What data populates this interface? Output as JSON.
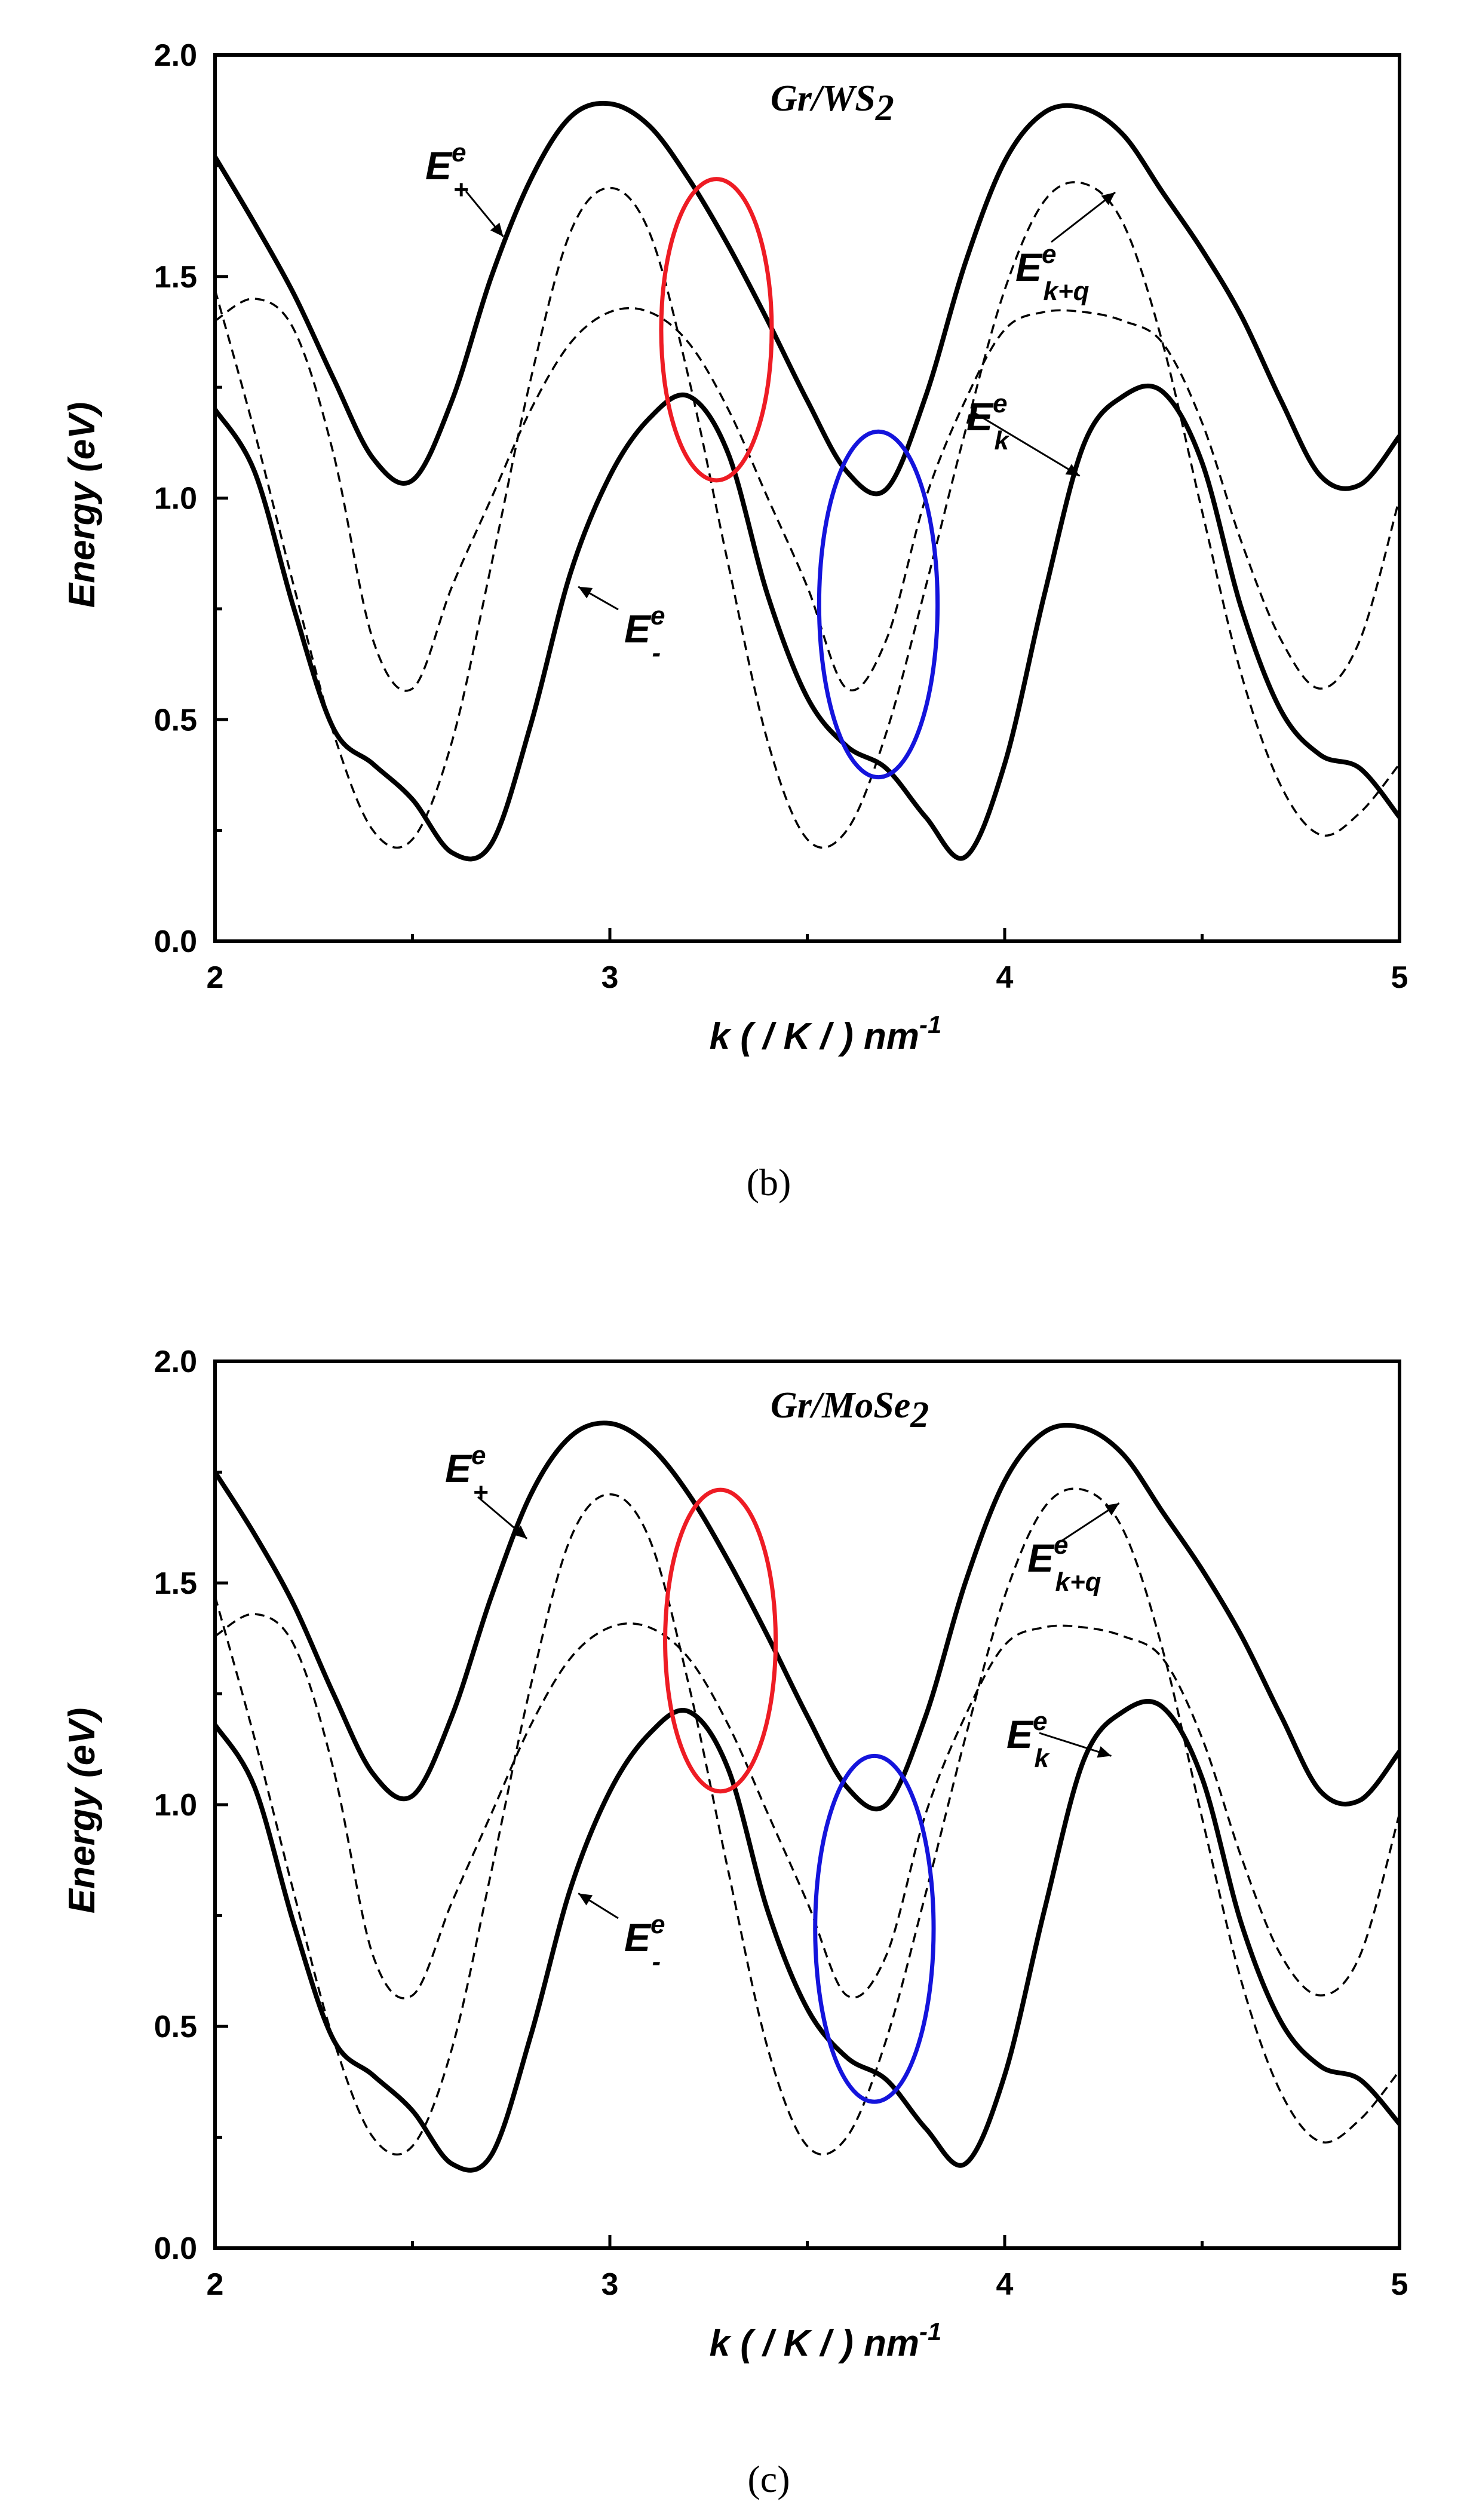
{
  "chart_data": [
    {
      "type": "line",
      "panel_label": "(b)",
      "title": "Gr/WS",
      "title_sub": "2",
      "xlabel": "k ( / K / ) nm",
      "xlabel_sup": "-1",
      "ylabel": "Energy (eV)",
      "xlim": [
        2,
        5
      ],
      "ylim": [
        0,
        2
      ],
      "xticks": [
        2,
        3,
        4,
        5
      ],
      "xtick_labels": [
        "2",
        "3",
        "4",
        "5"
      ],
      "yticks": [
        0,
        0.5,
        1,
        1.5,
        2
      ],
      "ytick_labels": [
        "0.0",
        "0.5",
        "1.0",
        "1.5",
        "2.0"
      ],
      "x": [
        2.0,
        2.1,
        2.2,
        2.3,
        2.4,
        2.5,
        2.6,
        2.7,
        2.8,
        2.9,
        3.0,
        3.1,
        3.2,
        3.3,
        3.4,
        3.5,
        3.6,
        3.7,
        3.8,
        3.9,
        4.0,
        4.1,
        4.2,
        4.3,
        4.4,
        4.5,
        4.6,
        4.7,
        4.8,
        4.9,
        5.0
      ],
      "series": [
        {
          "name": "E+e",
          "style": "solid",
          "values": [
            1.77,
            1.62,
            1.46,
            1.27,
            1.09,
            1.04,
            1.22,
            1.5,
            1.72,
            1.86,
            1.89,
            1.84,
            1.72,
            1.57,
            1.4,
            1.22,
            1.06,
            1.02,
            1.23,
            1.53,
            1.76,
            1.87,
            1.88,
            1.82,
            1.69,
            1.56,
            1.41,
            1.22,
            1.05,
            1.03,
            1.14
          ]
        },
        {
          "name": "E-e",
          "style": "solid",
          "values": [
            1.2,
            1.06,
            0.75,
            0.48,
            0.4,
            0.32,
            0.2,
            0.22,
            0.49,
            0.83,
            1.05,
            1.18,
            1.23,
            1.1,
            0.78,
            0.55,
            0.44,
            0.39,
            0.28,
            0.19,
            0.4,
            0.78,
            1.12,
            1.23,
            1.24,
            1.08,
            0.75,
            0.52,
            0.42,
            0.39,
            0.28
          ]
        },
        {
          "name": "Ek+qe",
          "style": "dashed",
          "values": [
            1.47,
            1.15,
            0.8,
            0.47,
            0.25,
            0.23,
            0.45,
            0.85,
            1.27,
            1.6,
            1.7,
            1.6,
            1.27,
            0.85,
            0.45,
            0.23,
            0.25,
            0.47,
            0.8,
            1.15,
            1.47,
            1.67,
            1.71,
            1.62,
            1.35,
            0.97,
            0.6,
            0.35,
            0.24,
            0.29,
            0.4
          ]
        },
        {
          "name": "Eke",
          "style": "dashed",
          "values": [
            1.4,
            1.45,
            1.38,
            1.1,
            0.68,
            0.57,
            0.8,
            1.0,
            1.2,
            1.35,
            1.42,
            1.42,
            1.35,
            1.2,
            1.0,
            0.8,
            0.57,
            0.68,
            1.0,
            1.22,
            1.38,
            1.42,
            1.42,
            1.4,
            1.35,
            1.17,
            0.9,
            0.68,
            0.57,
            0.68,
            1.0
          ]
        }
      ],
      "annotations": [
        {
          "label": "E",
          "sup": "e",
          "sub": "+",
          "arrow_to": [
            2.73,
            1.59
          ]
        },
        {
          "label": "E",
          "sup": "e",
          "sub": "-",
          "arrow_to": [
            2.92,
            0.8
          ]
        },
        {
          "label": "E",
          "sup": "e",
          "sub": "k+q",
          "arrow_to": [
            4.28,
            1.69
          ]
        },
        {
          "label": "E",
          "sup": "e",
          "sub": "k",
          "arrow_to": [
            4.19,
            1.05
          ]
        }
      ],
      "highlights": [
        {
          "color": "#ee1c24",
          "cx": 3.27,
          "cy": 1.38,
          "rx": 0.14,
          "ry": 0.34
        },
        {
          "color": "#1414dc",
          "cx": 3.68,
          "cy": 0.76,
          "rx": 0.15,
          "ry": 0.39
        }
      ]
    },
    {
      "type": "line",
      "panel_label": "(c)",
      "title": "Gr/MoSe",
      "title_sub": "2",
      "xlabel": "k ( / K / ) nm",
      "xlabel_sup": "-1",
      "ylabel": "Energy (eV)",
      "xlim": [
        2,
        5
      ],
      "ylim": [
        0,
        2
      ],
      "xticks": [
        2,
        3,
        4,
        5
      ],
      "xtick_labels": [
        "2",
        "3",
        "4",
        "5"
      ],
      "yticks": [
        0,
        0.5,
        1,
        1.5,
        2
      ],
      "ytick_labels": [
        "0.0",
        "0.5",
        "1.0",
        "1.5",
        "2.0"
      ],
      "x": [
        2.0,
        2.1,
        2.2,
        2.3,
        2.4,
        2.5,
        2.6,
        2.7,
        2.8,
        2.9,
        3.0,
        3.1,
        3.2,
        3.3,
        3.4,
        3.5,
        3.6,
        3.7,
        3.8,
        3.9,
        4.0,
        4.1,
        4.2,
        4.3,
        4.4,
        4.5,
        4.6,
        4.7,
        4.8,
        4.9,
        5.0
      ],
      "series": [
        {
          "name": "E+e",
          "style": "solid",
          "values": [
            1.75,
            1.61,
            1.45,
            1.25,
            1.07,
            1.02,
            1.2,
            1.47,
            1.7,
            1.83,
            1.86,
            1.81,
            1.7,
            1.55,
            1.38,
            1.2,
            1.04,
            1.0,
            1.2,
            1.5,
            1.73,
            1.84,
            1.85,
            1.79,
            1.66,
            1.53,
            1.38,
            1.2,
            1.03,
            1.01,
            1.12
          ]
        },
        {
          "name": "E-e",
          "style": "solid",
          "values": [
            1.18,
            1.04,
            0.73,
            0.47,
            0.39,
            0.31,
            0.19,
            0.21,
            0.48,
            0.81,
            1.03,
            1.16,
            1.21,
            1.08,
            0.76,
            0.54,
            0.43,
            0.38,
            0.27,
            0.19,
            0.39,
            0.76,
            1.1,
            1.21,
            1.22,
            1.06,
            0.73,
            0.51,
            0.41,
            0.38,
            0.28
          ]
        },
        {
          "name": "Ek+qe",
          "style": "dashed",
          "values": [
            1.47,
            1.15,
            0.8,
            0.47,
            0.25,
            0.23,
            0.45,
            0.85,
            1.27,
            1.6,
            1.7,
            1.6,
            1.27,
            0.85,
            0.45,
            0.23,
            0.25,
            0.47,
            0.8,
            1.15,
            1.47,
            1.67,
            1.71,
            1.62,
            1.35,
            0.97,
            0.6,
            0.35,
            0.24,
            0.29,
            0.4
          ]
        },
        {
          "name": "Eke",
          "style": "dashed",
          "values": [
            1.38,
            1.43,
            1.36,
            1.08,
            0.66,
            0.57,
            0.78,
            0.98,
            1.18,
            1.33,
            1.4,
            1.4,
            1.33,
            1.18,
            0.98,
            0.78,
            0.57,
            0.66,
            0.98,
            1.2,
            1.36,
            1.4,
            1.4,
            1.38,
            1.33,
            1.15,
            0.88,
            0.66,
            0.57,
            0.66,
            0.98
          ]
        }
      ],
      "annotations": [
        {
          "label": "E",
          "sup": "e",
          "sub": "+",
          "arrow_to": [
            2.79,
            1.6
          ]
        },
        {
          "label": "E",
          "sup": "e",
          "sub": "-",
          "arrow_to": [
            2.92,
            0.8
          ]
        },
        {
          "label": "E",
          "sup": "e",
          "sub": "k+q",
          "arrow_to": [
            4.29,
            1.68
          ]
        },
        {
          "label": "E",
          "sup": "e",
          "sub": "k",
          "arrow_to": [
            4.27,
            1.11
          ]
        }
      ],
      "highlights": [
        {
          "color": "#ee1c24",
          "cx": 3.28,
          "cy": 1.37,
          "rx": 0.14,
          "ry": 0.34
        },
        {
          "color": "#1414dc",
          "cx": 3.67,
          "cy": 0.72,
          "rx": 0.15,
          "ry": 0.39
        }
      ]
    }
  ]
}
